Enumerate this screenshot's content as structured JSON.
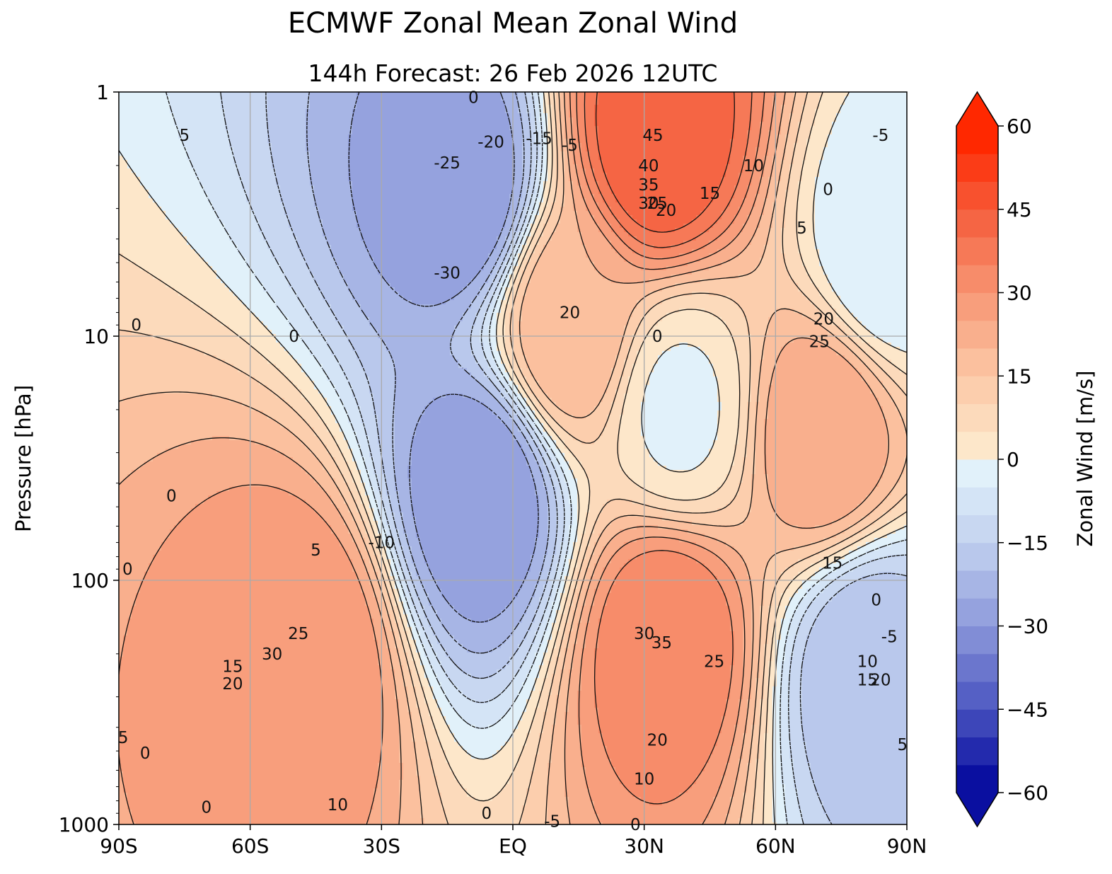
{
  "title": "ECMWF Zonal Mean Zonal Wind",
  "subtitle": "144h  Forecast:  26 Feb 2026  12UTC",
  "chart_data": {
    "type": "heatmap",
    "title": "ECMWF Zonal Mean Zonal Wind",
    "subtitle": "144h  Forecast:  26 Feb 2026  12UTC",
    "xlabel": "",
    "ylabel": "Pressure [hPa]",
    "x_ticks": [
      "90S",
      "60S",
      "30S",
      "EQ",
      "30N",
      "60N",
      "90N"
    ],
    "x_tick_values": [
      -90,
      -60,
      -30,
      0,
      30,
      60,
      90
    ],
    "y_ticks": [
      "1",
      "10",
      "100",
      "1000"
    ],
    "y_tick_values": [
      1,
      10,
      100,
      1000
    ],
    "xlim": [
      -90,
      90
    ],
    "ylim": [
      1000,
      1
    ],
    "y_scale": "log",
    "grid": true,
    "colorbar": {
      "label": "Zonal Wind [m/s]",
      "range": [
        -60,
        60
      ],
      "step": 5,
      "ticks": [
        "60",
        "45",
        "30",
        "15",
        "0",
        "−15",
        "−30",
        "−45",
        "−60"
      ],
      "tick_values": [
        60,
        45,
        30,
        15,
        0,
        -15,
        -30,
        -45,
        -60
      ],
      "extend": "both"
    },
    "contour_interval": 5,
    "features": [
      {
        "lat": -48,
        "p": 200,
        "value": 30
      },
      {
        "lat": 35,
        "p": 170,
        "value": 35
      },
      {
        "lat": 33,
        "p": 1.6,
        "value": 45
      },
      {
        "lat": -12,
        "p": 2.5,
        "value": -30
      },
      {
        "lat": -7,
        "p": 45,
        "value": -30
      },
      {
        "lat": 13,
        "p": 9,
        "value": 20
      },
      {
        "lat": 71,
        "p": 25,
        "value": 25
      },
      {
        "lat": 81,
        "p": 230,
        "value": -20
      },
      {
        "lat": 85,
        "p": 4.5,
        "value": -5
      },
      {
        "lat": 38,
        "p": 20,
        "value": -1
      }
    ],
    "contour_labels": [
      {
        "text": "5",
        "lat": -75,
        "p": 1.5
      },
      {
        "text": "0",
        "lat": -86,
        "p": 9
      },
      {
        "text": "0",
        "lat": -50,
        "p": 10
      },
      {
        "text": "0",
        "lat": -78,
        "p": 45
      },
      {
        "text": "5",
        "lat": -45,
        "p": 75
      },
      {
        "text": "-10",
        "lat": -30,
        "p": 70
      },
      {
        "text": "0",
        "lat": -88,
        "p": 90
      },
      {
        "text": "25",
        "lat": -49,
        "p": 165
      },
      {
        "text": "30",
        "lat": -55,
        "p": 200
      },
      {
        "text": "15",
        "lat": -64,
        "p": 225
      },
      {
        "text": "20",
        "lat": -64,
        "p": 265
      },
      {
        "text": "5",
        "lat": -89,
        "p": 440
      },
      {
        "text": "0",
        "lat": -84,
        "p": 510
      },
      {
        "text": "0",
        "lat": -70,
        "p": 850
      },
      {
        "text": "10",
        "lat": -40,
        "p": 830
      },
      {
        "text": "0",
        "lat": -6,
        "p": 900
      },
      {
        "text": "-5",
        "lat": 9,
        "p": 970
      },
      {
        "text": "0",
        "lat": 28,
        "p": 1000
      },
      {
        "text": "0",
        "lat": -9,
        "p": 1.05
      },
      {
        "text": "-25",
        "lat": -15,
        "p": 1.95
      },
      {
        "text": "-20",
        "lat": -5,
        "p": 1.6
      },
      {
        "text": "-15",
        "lat": 6,
        "p": 1.55
      },
      {
        "text": "-5",
        "lat": 13,
        "p": 1.65
      },
      {
        "text": "-30",
        "lat": -15,
        "p": 5.5
      },
      {
        "text": "45",
        "lat": 32,
        "p": 1.5
      },
      {
        "text": "40",
        "lat": 31,
        "p": 2.0
      },
      {
        "text": "35",
        "lat": 31,
        "p": 2.4
      },
      {
        "text": "30",
        "lat": 31,
        "p": 2.85
      },
      {
        "text": "25",
        "lat": 33,
        "p": 2.85
      },
      {
        "text": "20",
        "lat": 35,
        "p": 3.05
      },
      {
        "text": "15",
        "lat": 45,
        "p": 2.6
      },
      {
        "text": "10",
        "lat": 55,
        "p": 2.0
      },
      {
        "text": "20",
        "lat": 13,
        "p": 8.0
      },
      {
        "text": "0",
        "lat": 33,
        "p": 10
      },
      {
        "text": "0",
        "lat": 72,
        "p": 2.5
      },
      {
        "text": "-5",
        "lat": 84,
        "p": 1.5
      },
      {
        "text": "5",
        "lat": 66,
        "p": 3.6
      },
      {
        "text": "20",
        "lat": 71,
        "p": 8.5
      },
      {
        "text": "25",
        "lat": 70,
        "p": 10.5
      },
      {
        "text": "15",
        "lat": 73,
        "p": 85
      },
      {
        "text": "0",
        "lat": 83,
        "p": 120
      },
      {
        "text": "30",
        "lat": 30,
        "p": 165
      },
      {
        "text": "35",
        "lat": 34,
        "p": 180
      },
      {
        "text": "25",
        "lat": 46,
        "p": 215
      },
      {
        "text": "20",
        "lat": 33,
        "p": 450
      },
      {
        "text": "10",
        "lat": 30,
        "p": 650
      },
      {
        "text": "-5",
        "lat": 86,
        "p": 170
      },
      {
        "text": "10",
        "lat": 81,
        "p": 215
      },
      {
        "text": "15",
        "lat": 81,
        "p": 255
      },
      {
        "text": "20",
        "lat": 84,
        "p": 255
      },
      {
        "text": "5",
        "lat": 89,
        "p": 470
      }
    ]
  }
}
